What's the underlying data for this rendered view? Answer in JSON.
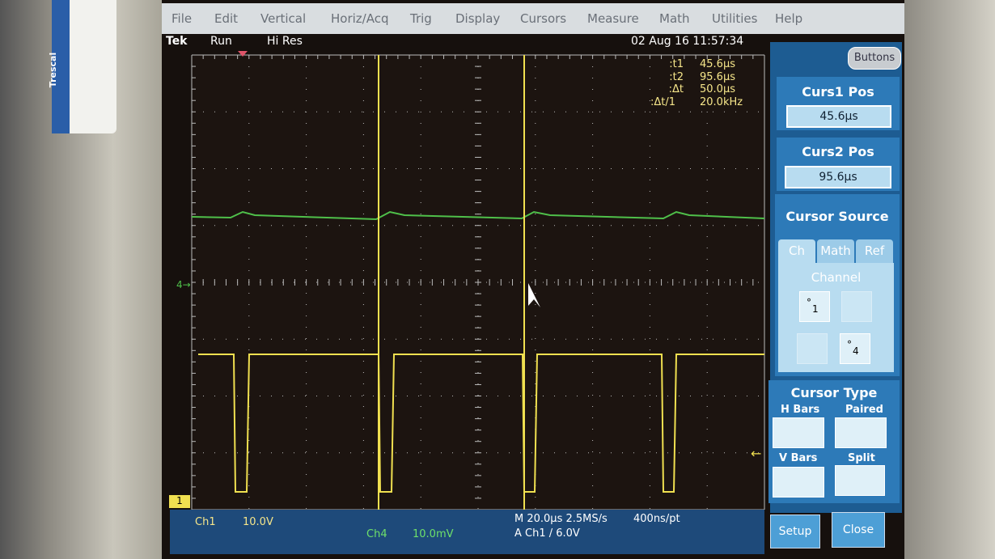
{
  "sticker": "Trescal",
  "menu": [
    "File",
    "Edit",
    "Vertical",
    "Horiz/Acq",
    "Trig",
    "Display",
    "Cursors",
    "Measure",
    "Math",
    "Utilities",
    "Help"
  ],
  "status": {
    "brand": "Tek",
    "state": "Run",
    "mode": "Hi Res",
    "datetime": "02 Aug 16 11:57:34"
  },
  "readout": [
    {
      "label": "t1:",
      "value": "45.6µs"
    },
    {
      "label": "t2:",
      "value": "95.6µs"
    },
    {
      "label": "Δt:",
      "value": "50.0µs"
    },
    {
      "label": "1/Δt:",
      "value": "20.0kHz"
    }
  ],
  "marker": "1",
  "panel": {
    "buttons": "Buttons",
    "curs1_label": "Curs1 Pos",
    "curs1_value": "45.6µs",
    "curs2_label": "Curs2 Pos",
    "curs2_value": "95.6µs",
    "source_title": "Cursor Source",
    "tabs": [
      "Ch",
      "Math",
      "Ref"
    ],
    "channel_label": "Channel",
    "channels": [
      "1",
      "4"
    ],
    "type_title": "Cursor Type",
    "types": [
      "H Bars",
      "Paired",
      "V Bars",
      "Split"
    ],
    "setup": "Setup",
    "close": "Close"
  },
  "bottom": {
    "ch1": "Ch1",
    "ch1_scale": "10.0V",
    "ch4": "Ch4",
    "ch4_scale": "10.0mV",
    "timebase": "M 20.0µs 2.5MS/s",
    "resolution": "400ns/pt",
    "trigger": "A Ch1 / 6.0V"
  }
}
